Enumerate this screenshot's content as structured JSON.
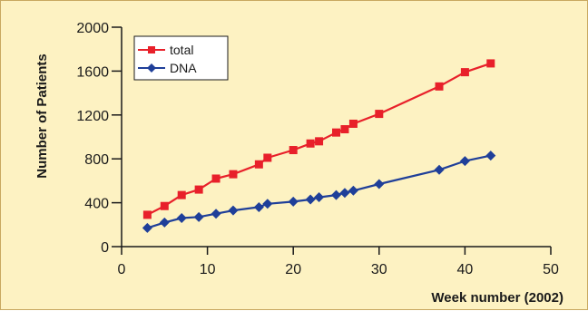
{
  "colors": {
    "background": "#fdf2c2",
    "border": "#c8a860",
    "total": "#e8202a",
    "dna": "#1f3f99",
    "axis": "#1a1a1a"
  },
  "chart_data": {
    "type": "line",
    "title": "",
    "xlabel": "Week number (2002)",
    "ylabel": "Number of Patients",
    "xlim": [
      0,
      50
    ],
    "ylim": [
      0,
      2000
    ],
    "xticks": [
      0,
      10,
      20,
      30,
      40,
      50
    ],
    "yticks": [
      0,
      400,
      800,
      1200,
      1600,
      2000
    ],
    "grid": false,
    "legend_position": "top-left",
    "series": [
      {
        "name": "total",
        "marker": "square",
        "color": "#e8202a",
        "x": [
          3,
          5,
          7,
          9,
          11,
          13,
          16,
          17,
          20,
          22,
          23,
          25,
          26,
          27,
          30,
          37,
          40,
          43
        ],
        "y": [
          290,
          370,
          470,
          520,
          620,
          660,
          750,
          810,
          880,
          940,
          960,
          1040,
          1070,
          1120,
          1210,
          1460,
          1590,
          1670
        ]
      },
      {
        "name": "DNA",
        "marker": "diamond",
        "color": "#1f3f99",
        "x": [
          3,
          5,
          7,
          9,
          11,
          13,
          16,
          17,
          20,
          22,
          23,
          25,
          26,
          27,
          30,
          37,
          40,
          43
        ],
        "y": [
          170,
          220,
          260,
          270,
          300,
          330,
          360,
          390,
          410,
          430,
          450,
          470,
          490,
          510,
          570,
          700,
          780,
          830
        ]
      }
    ]
  }
}
